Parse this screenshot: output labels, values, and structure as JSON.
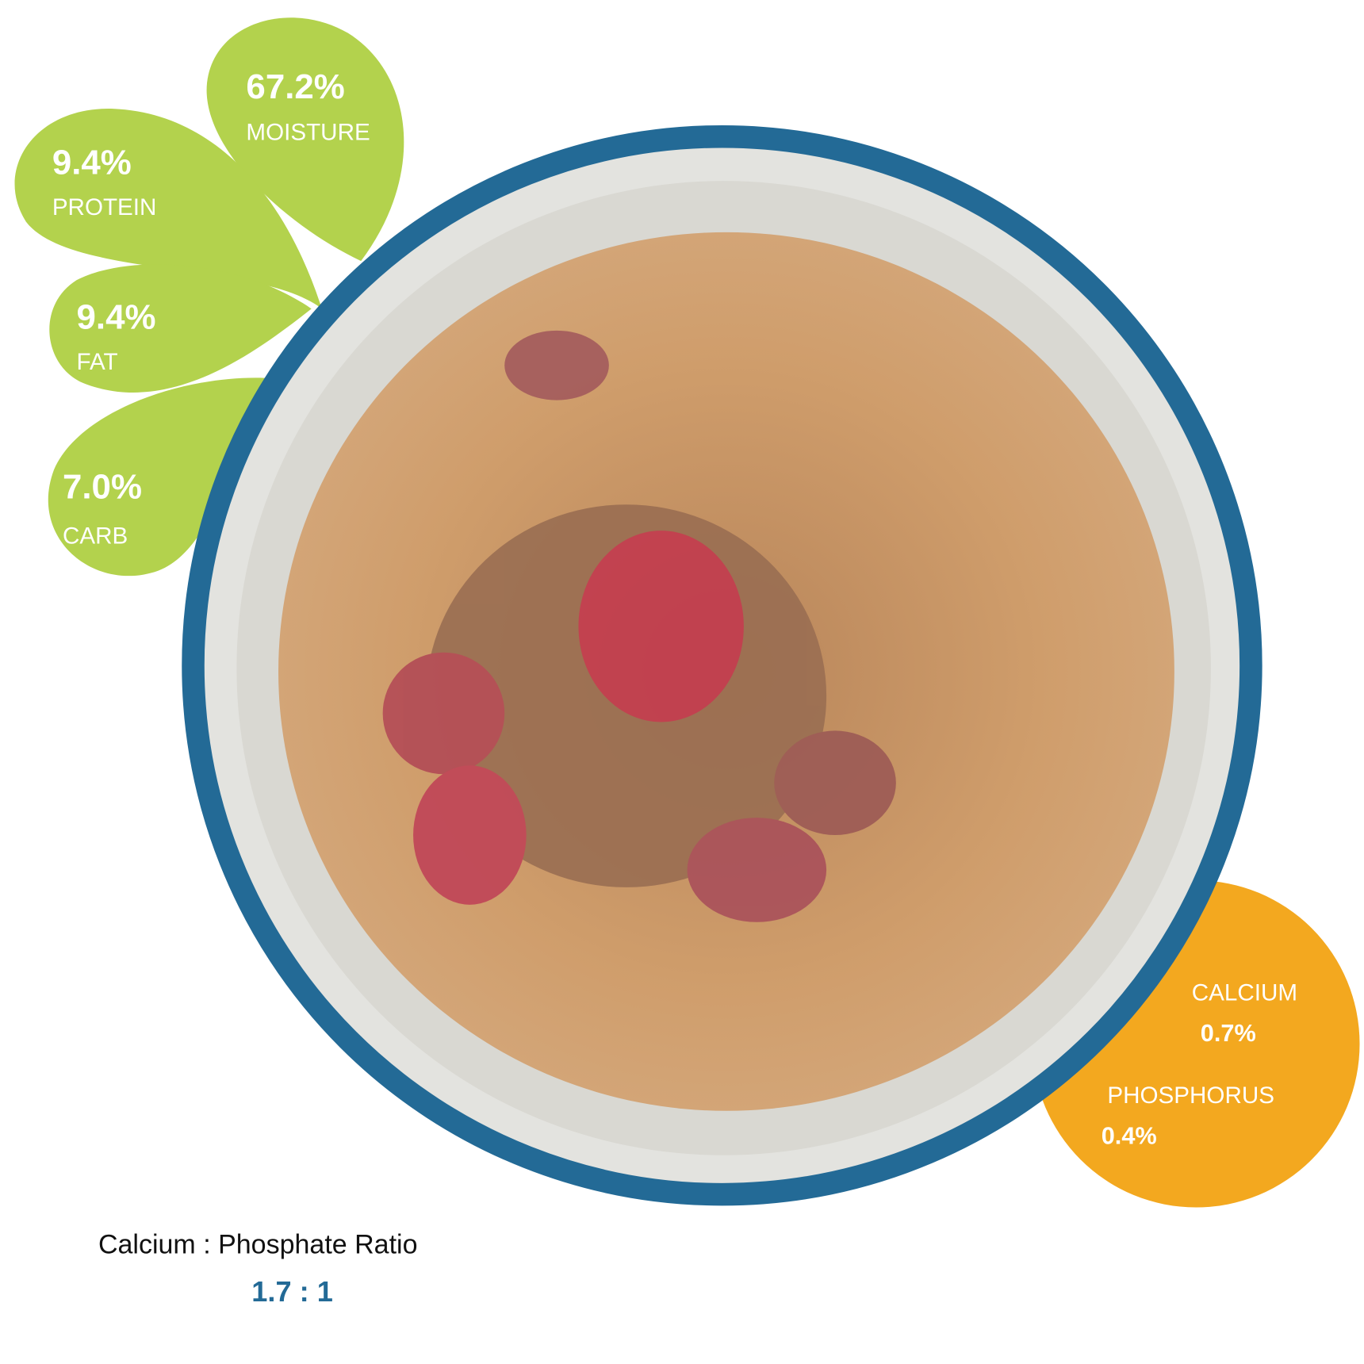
{
  "drops": [
    {
      "value": "67.2%",
      "label": "MOISTURE"
    },
    {
      "value": "9.4%",
      "label": "PROTEIN"
    },
    {
      "value": "9.4%",
      "label": "FAT"
    },
    {
      "value": "7.0%",
      "label": "CARB"
    }
  ],
  "minerals": [
    {
      "label": "CALCIUM",
      "value": "0.7%"
    },
    {
      "label": "PHOSPHORUS",
      "value": "0.4%"
    }
  ],
  "ratio": {
    "label": "Calcium : Phosphate Ratio",
    "value": "1.7 : 1"
  }
}
